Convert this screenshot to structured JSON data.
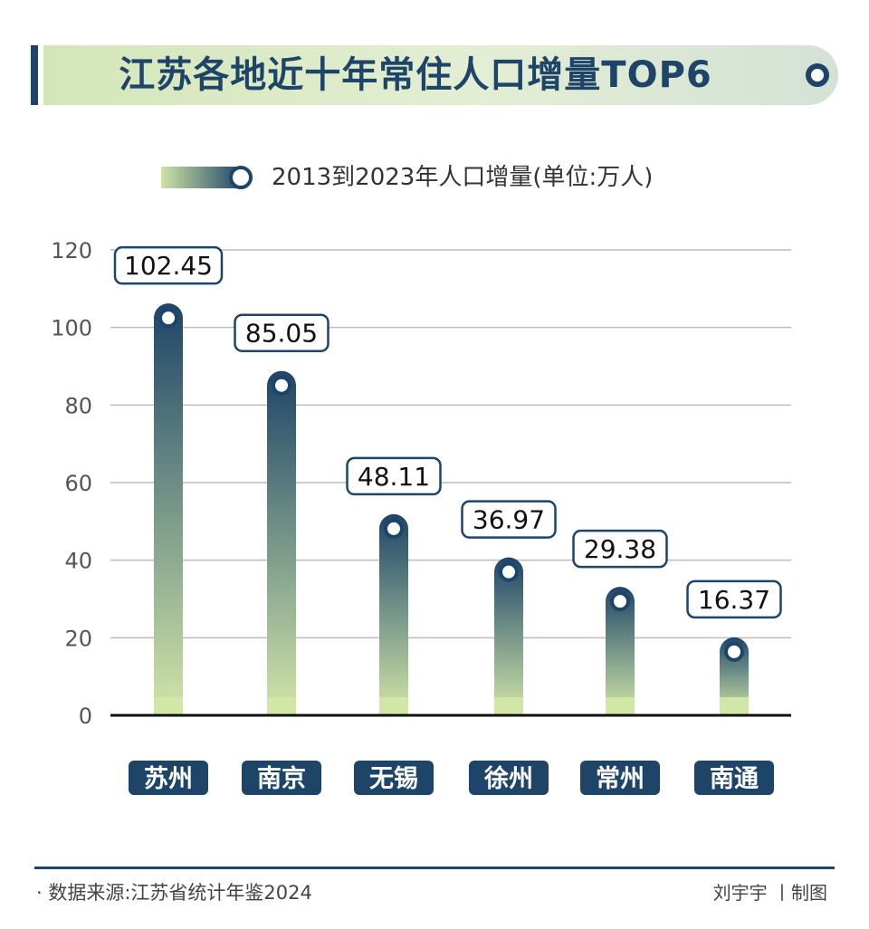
{
  "title": "江苏各地近十年常住人口增量TOP6",
  "legend": {
    "label": "2013到2023年人口增量(单位:万人)"
  },
  "colors": {
    "dark": "#1e4468",
    "light": "#cfe3a6",
    "grid": "#bcbcbc"
  },
  "chart_data": {
    "type": "bar",
    "title": "江苏各地近十年常住人口增量TOP6",
    "series": [
      {
        "name": "2013到2023年人口增量(单位:万人)",
        "values": [
          102.45,
          85.05,
          48.11,
          36.97,
          29.38,
          16.37
        ]
      }
    ],
    "categories": [
      "苏州",
      "南京",
      "无锡",
      "徐州",
      "常州",
      "南通"
    ],
    "value_labels": [
      "102.45",
      "85.05",
      "48.11",
      "36.97",
      "29.38",
      "16.37"
    ],
    "yticks": [
      "0",
      "20",
      "40",
      "60",
      "80",
      "100",
      "120"
    ],
    "ylim": [
      0,
      120
    ],
    "grid": true,
    "legend_position": "top"
  },
  "footer": {
    "source": "· 数据来源:江苏省统计年鉴2024",
    "credit": "刘宇宇 丨制图"
  }
}
